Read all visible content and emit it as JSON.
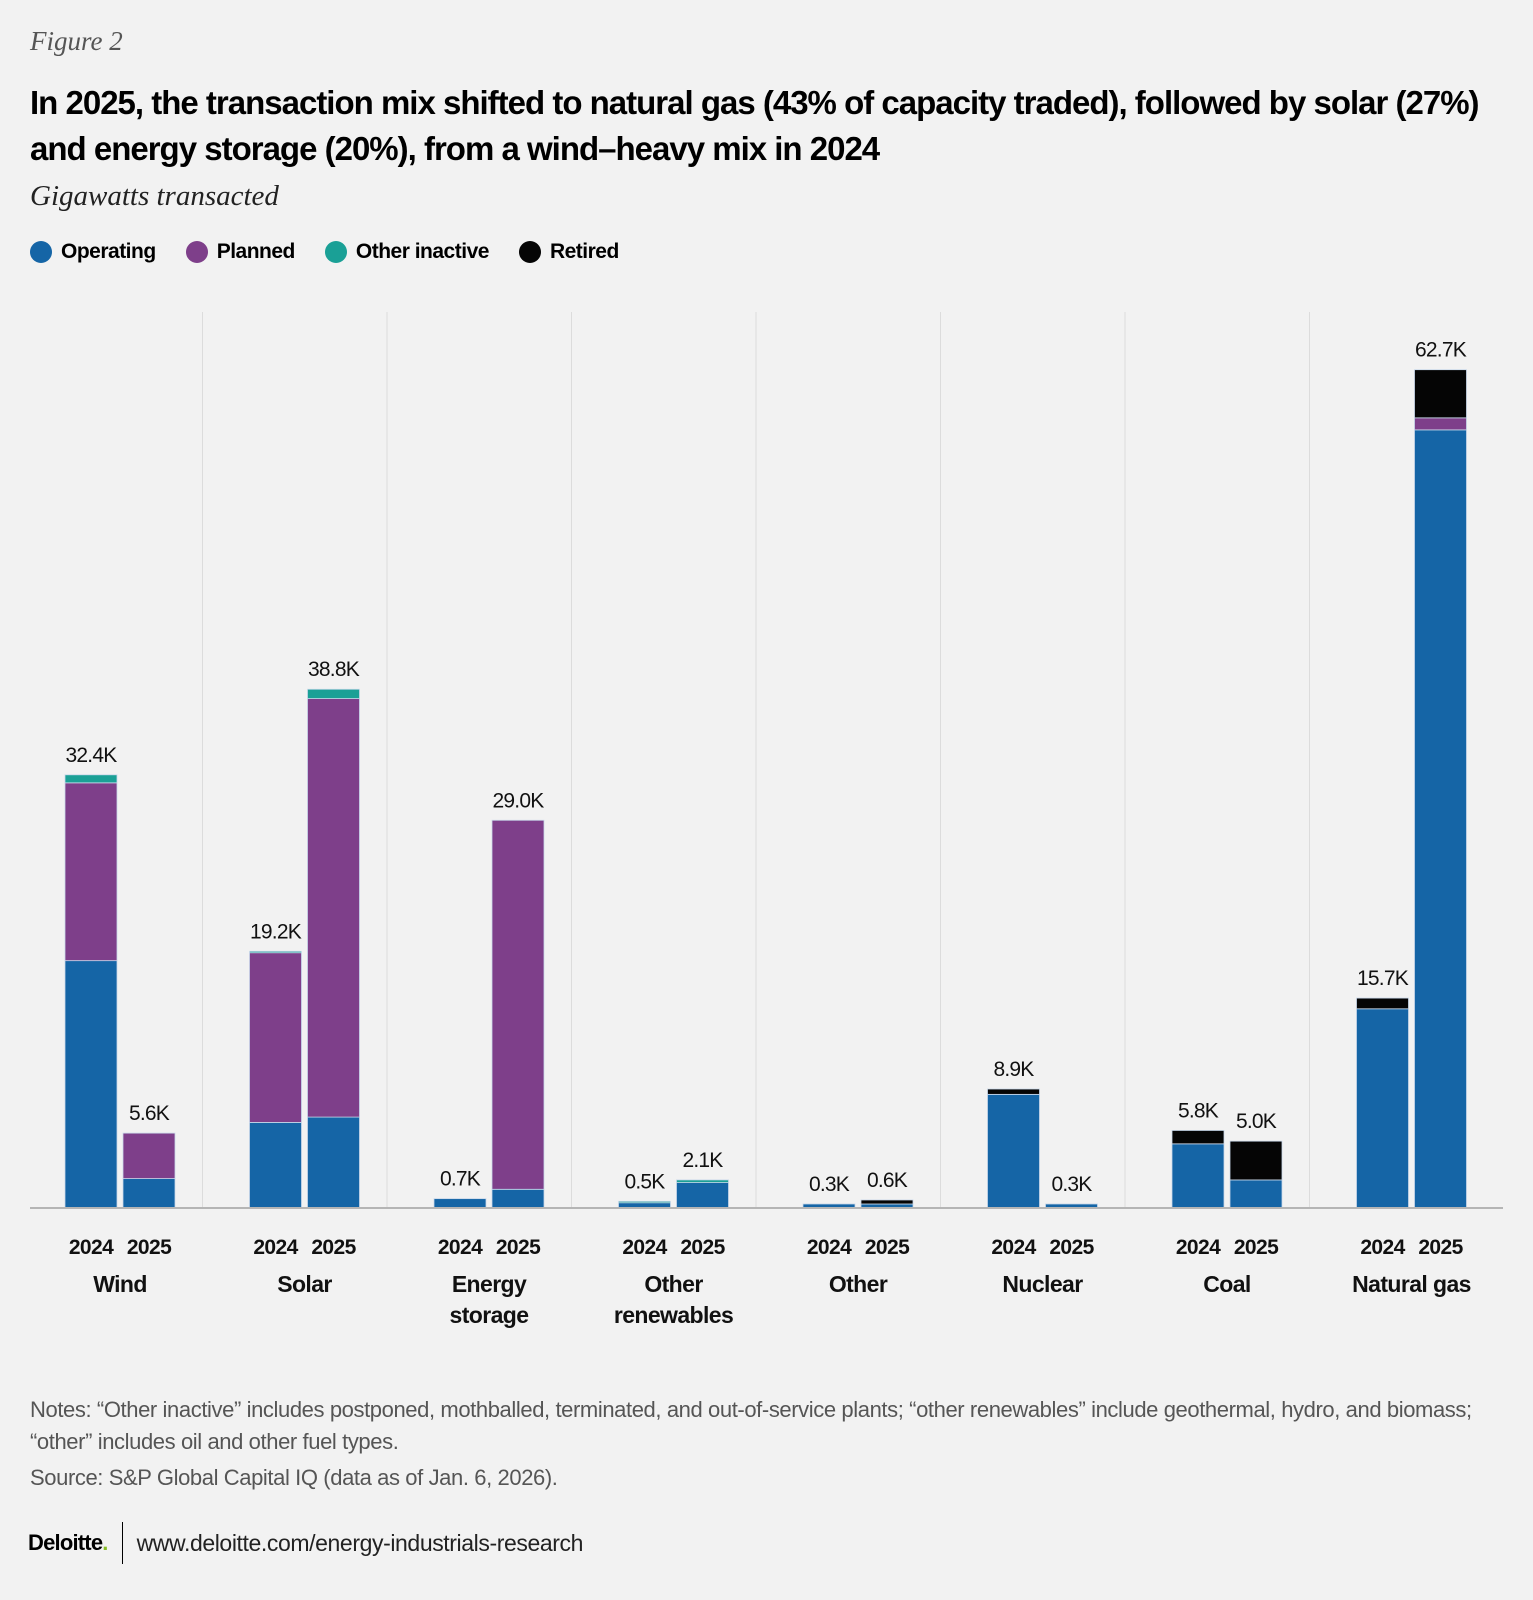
{
  "figure_label": "Figure 2",
  "title": "In 2025, the transaction mix shifted to natural gas (43% of capacity traded), followed by solar (27%) and energy storage (20%), from a wind–heavy mix in 2024",
  "subtitle": "Gigawatts transacted",
  "notes": "Notes: “Other inactive” includes postponed, mothballed, terminated, and out-of-service plants; “other renewables” include geothermal, hydro, and biomass; “other” includes oil and other fuel types.",
  "source": "Source: S&P Global Capital IQ (data as of Jan. 6, 2026).",
  "footer": {
    "brand": "Deloitte",
    "brand_dot": ".",
    "url": "www.deloitte.com/energy-industrials-research"
  },
  "colors": {
    "operating": "#1565a6",
    "planned": "#7e3f8a",
    "other_inactive": "#1aa096",
    "retired": "#050505",
    "divider": "#dcdcdc",
    "axis": "#b5b5b5"
  },
  "chart_data": {
    "type": "bar",
    "stacked": true,
    "title": "In 2025, the transaction mix shifted to natural gas (43% of capacity traded), followed by solar (27%) and energy storage (20%), from a wind–heavy mix in 2024",
    "ylabel": "Gigawatts transacted",
    "xlabel": "",
    "ylim": [
      0,
      65
    ],
    "grid": false,
    "legend_position": "top-left",
    "legend": [
      "Operating",
      "Planned",
      "Other inactive",
      "Retired"
    ],
    "groups": [
      {
        "name": [
          "Wind"
        ],
        "bars": [
          {
            "year": "2024",
            "total_label": "32.4K",
            "operating": 18.5,
            "planned": 13.3,
            "other_inactive": 0.6,
            "retired": 0.0
          },
          {
            "year": "2025",
            "total_label": "5.6K",
            "operating": 2.2,
            "planned": 3.4,
            "other_inactive": 0.0,
            "retired": 0.0
          }
        ]
      },
      {
        "name": [
          "Solar"
        ],
        "bars": [
          {
            "year": "2024",
            "total_label": "19.2K",
            "operating": 6.4,
            "planned": 12.7,
            "other_inactive": 0.1,
            "retired": 0.0
          },
          {
            "year": "2025",
            "total_label": "38.8K",
            "operating": 6.8,
            "planned": 31.3,
            "other_inactive": 0.7,
            "retired": 0.0
          }
        ]
      },
      {
        "name": [
          "Energy",
          "storage"
        ],
        "bars": [
          {
            "year": "2024",
            "total_label": "0.7K",
            "operating": 0.7,
            "planned": 0.0,
            "other_inactive": 0.0,
            "retired": 0.0
          },
          {
            "year": "2025",
            "total_label": "29.0K",
            "operating": 1.4,
            "planned": 27.6,
            "other_inactive": 0.0,
            "retired": 0.0
          }
        ]
      },
      {
        "name": [
          "Other",
          "renewables"
        ],
        "bars": [
          {
            "year": "2024",
            "total_label": "0.5K",
            "operating": 0.4,
            "planned": 0.0,
            "other_inactive": 0.1,
            "retired": 0.0
          },
          {
            "year": "2025",
            "total_label": "2.1K",
            "operating": 1.9,
            "planned": 0.0,
            "other_inactive": 0.2,
            "retired": 0.0
          }
        ]
      },
      {
        "name": [
          "Other"
        ],
        "bars": [
          {
            "year": "2024",
            "total_label": "0.3K",
            "operating": 0.3,
            "planned": 0.0,
            "other_inactive": 0.0,
            "retired": 0.0
          },
          {
            "year": "2025",
            "total_label": "0.6K",
            "operating": 0.3,
            "planned": 0.0,
            "other_inactive": 0.0,
            "retired": 0.3
          }
        ]
      },
      {
        "name": [
          "Nuclear"
        ],
        "bars": [
          {
            "year": "2024",
            "total_label": "8.9K",
            "operating": 8.5,
            "planned": 0.0,
            "other_inactive": 0.0,
            "retired": 0.4
          },
          {
            "year": "2025",
            "total_label": "0.3K",
            "operating": 0.3,
            "planned": 0.0,
            "other_inactive": 0.0,
            "retired": 0.0
          }
        ]
      },
      {
        "name": [
          "Coal"
        ],
        "bars": [
          {
            "year": "2024",
            "total_label": "5.8K",
            "operating": 4.8,
            "planned": 0.0,
            "other_inactive": 0.0,
            "retired": 1.0
          },
          {
            "year": "2025",
            "total_label": "5.0K",
            "operating": 2.1,
            "planned": 0.0,
            "other_inactive": 0.0,
            "retired": 2.9
          }
        ]
      },
      {
        "name": [
          "Natural gas"
        ],
        "bars": [
          {
            "year": "2024",
            "total_label": "15.7K",
            "operating": 14.9,
            "planned": 0.0,
            "other_inactive": 0.0,
            "retired": 0.8
          },
          {
            "year": "2025",
            "total_label": "62.7K",
            "operating": 58.2,
            "planned": 0.9,
            "other_inactive": 0.0,
            "retired": 3.6
          }
        ]
      }
    ]
  }
}
